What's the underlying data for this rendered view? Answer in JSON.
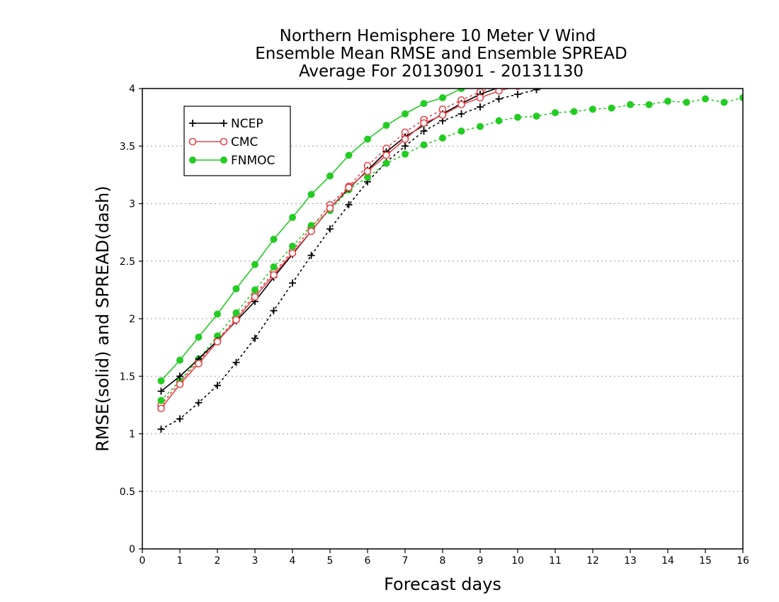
{
  "chart_data": {
    "type": "line",
    "title": [
      "Northern Hemisphere 10 Meter V Wind",
      "Ensemble Mean RMSE and Ensemble SPREAD",
      "Average For 20130901 - 20131130"
    ],
    "xlabel": "Forecast days",
    "ylabel": "RMSE(solid) and SPREAD(dash)",
    "xlim": [
      0,
      16
    ],
    "ylim": [
      0,
      4
    ],
    "xticks": [
      "0",
      "1",
      "2",
      "3",
      "4",
      "5",
      "6",
      "7",
      "8",
      "9",
      "10",
      "11",
      "12",
      "13",
      "14",
      "15",
      "16"
    ],
    "yticks": [
      "0",
      "0.5",
      "1",
      "1.5",
      "2",
      "2.5",
      "3",
      "3.5",
      "4"
    ],
    "grid": "horizontal dotted",
    "legend_position": "top-left",
    "series": [
      {
        "name": "NCEP",
        "color": "#000000",
        "marker": "plus",
        "rmse": {
          "x": [
            0.5,
            1,
            1.5,
            2,
            2.5,
            3,
            3.5,
            4,
            4.5,
            5,
            5.5,
            6,
            6.5,
            7,
            7.5,
            8,
            8.5,
            9,
            9.5,
            10
          ],
          "y": [
            1.37,
            1.5,
            1.65,
            1.81,
            1.98,
            2.15,
            2.36,
            2.56,
            2.76,
            2.96,
            3.13,
            3.29,
            3.45,
            3.58,
            3.68,
            3.78,
            3.87,
            3.95,
            4.01,
            4.06
          ]
        },
        "spread": {
          "x": [
            0.5,
            1,
            1.5,
            2,
            2.5,
            3,
            3.5,
            4,
            4.5,
            5,
            5.5,
            6,
            6.5,
            7,
            7.5,
            8,
            8.5,
            9,
            9.5,
            10,
            10.5,
            11
          ],
          "y": [
            1.04,
            1.13,
            1.27,
            1.42,
            1.62,
            1.83,
            2.07,
            2.31,
            2.55,
            2.78,
            2.99,
            3.19,
            3.36,
            3.5,
            3.63,
            3.72,
            3.78,
            3.84,
            3.91,
            3.95,
            3.99,
            4.03
          ]
        }
      },
      {
        "name": "CMC",
        "color": "#e8454a",
        "marker": "open-circle",
        "rmse": {
          "x": [
            0.5,
            1,
            1.5,
            2,
            2.5,
            3,
            3.5,
            4,
            4.5,
            5,
            5.5,
            6,
            6.5,
            7,
            7.5,
            8,
            8.5,
            9,
            9.5,
            10
          ],
          "y": [
            1.22,
            1.43,
            1.61,
            1.8,
            1.99,
            2.19,
            2.38,
            2.57,
            2.76,
            2.96,
            3.14,
            3.28,
            3.42,
            3.56,
            3.7,
            3.77,
            3.86,
            3.92,
            3.98,
            4.02
          ]
        },
        "spread": {
          "x": [
            0.5,
            1,
            1.5,
            2,
            2.5,
            3,
            3.5,
            4,
            4.5,
            5,
            5.5,
            6,
            6.5,
            7,
            7.5,
            8,
            8.5,
            9,
            9.5,
            10
          ],
          "y": [
            1.25,
            1.45,
            1.63,
            1.81,
            2.01,
            2.21,
            2.4,
            2.59,
            2.79,
            2.99,
            3.15,
            3.33,
            3.48,
            3.62,
            3.73,
            3.82,
            3.9,
            3.97,
            4.03,
            4.06
          ]
        }
      },
      {
        "name": "FNMOC",
        "color": "#22cc22",
        "marker": "filled-circle",
        "rmse": {
          "x": [
            0.5,
            1,
            1.5,
            2,
            2.5,
            3,
            3.5,
            4,
            4.5,
            5,
            5.5,
            6,
            6.5,
            7,
            7.5,
            8,
            8.5,
            9
          ],
          "y": [
            1.46,
            1.64,
            1.84,
            2.04,
            2.26,
            2.47,
            2.69,
            2.88,
            3.08,
            3.24,
            3.42,
            3.56,
            3.68,
            3.78,
            3.87,
            3.92,
            4.0,
            4.06
          ]
        },
        "spread": {
          "x": [
            0.5,
            1,
            1.5,
            2,
            2.5,
            3,
            3.5,
            4,
            4.5,
            5,
            5.5,
            6,
            6.5,
            7,
            7.5,
            8,
            8.5,
            9,
            9.5,
            10,
            10.5,
            11,
            11.5,
            12,
            12.5,
            13,
            13.5,
            14,
            14.5,
            15,
            15.5,
            16
          ],
          "y": [
            1.29,
            1.46,
            1.65,
            1.85,
            2.05,
            2.25,
            2.45,
            2.63,
            2.81,
            2.94,
            3.12,
            3.23,
            3.35,
            3.43,
            3.51,
            3.57,
            3.63,
            3.67,
            3.72,
            3.75,
            3.76,
            3.79,
            3.8,
            3.82,
            3.83,
            3.86,
            3.86,
            3.89,
            3.88,
            3.91,
            3.88,
            3.92
          ]
        }
      }
    ]
  }
}
